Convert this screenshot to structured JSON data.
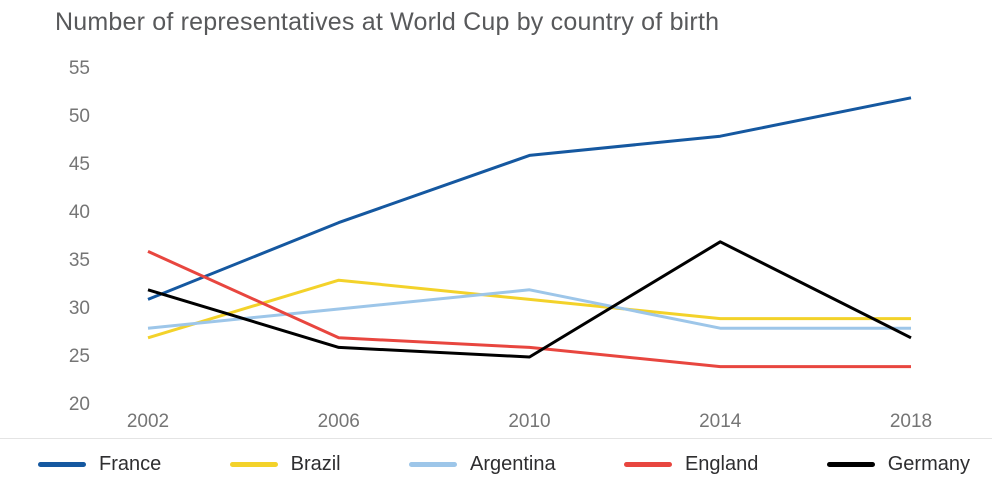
{
  "title": "Number of representatives at World Cup by country of birth",
  "chart_data": {
    "type": "line",
    "title": "Number of representatives at World Cup by country of birth",
    "x": [
      2002,
      2006,
      2010,
      2014,
      2018
    ],
    "x_tick_labels": [
      "2002",
      "2006",
      "2010",
      "2014",
      "2018"
    ],
    "series": [
      {
        "name": "France",
        "color": "#1558a0",
        "values": [
          31,
          39,
          46,
          48,
          52
        ]
      },
      {
        "name": "Brazil",
        "color": "#f3d22a",
        "values": [
          27,
          33,
          31,
          29,
          29
        ]
      },
      {
        "name": "Argentina",
        "color": "#9dc6e9",
        "values": [
          28,
          30,
          32,
          28,
          28
        ]
      },
      {
        "name": "England",
        "color": "#e8463f",
        "values": [
          36,
          27,
          26,
          24,
          24
        ]
      },
      {
        "name": "Germany",
        "color": "#000000",
        "values": [
          32,
          26,
          25,
          37,
          27
        ]
      }
    ],
    "ylim": [
      20,
      55
    ],
    "y_ticks": [
      55,
      50,
      45,
      40,
      35,
      30,
      25,
      20
    ],
    "grid": false,
    "legend_position": "bottom",
    "line_width": 3
  }
}
